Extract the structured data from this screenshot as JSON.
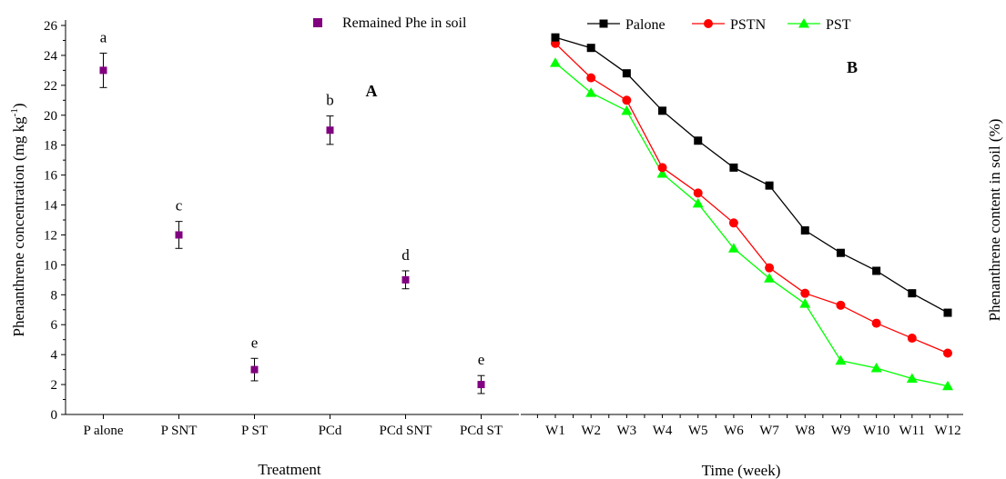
{
  "chart_data": [
    {
      "type": "scatter",
      "panel_label": "A",
      "xlabel": "Treatment",
      "ylabel": "Phenanthrene concentration (mg kg-1)",
      "ylabel_parts": {
        "main": "Phenanthrene concentration (mg kg",
        "superscript": "-1",
        "close": ")"
      },
      "ylim": [
        0,
        26
      ],
      "yticks": [
        0,
        2,
        4,
        6,
        8,
        10,
        12,
        14,
        16,
        18,
        20,
        22,
        24,
        26
      ],
      "categories": [
        "P alone",
        "P SNT",
        "P ST",
        "PCd",
        "PCd SNT",
        "PCd ST"
      ],
      "series": [
        {
          "name": "Remained Phe in soil",
          "color": "#800080",
          "marker": "square",
          "values": [
            23,
            12,
            3,
            19,
            9,
            2
          ],
          "errors": [
            1.15,
            0.9,
            0.75,
            0.95,
            0.6,
            0.6
          ],
          "letters": [
            "a",
            "c",
            "e",
            "b",
            "d",
            "e"
          ]
        }
      ],
      "legend_position": "top"
    },
    {
      "type": "line",
      "panel_label": "B",
      "xlabel": "Time (week)",
      "ylabel": "Phenanthrene content in soil (%)",
      "categories": [
        "W1",
        "W2",
        "W3",
        "W4",
        "W5",
        "W6",
        "W7",
        "W8",
        "W9",
        "W10",
        "W11",
        "W12"
      ],
      "ylim": [
        0,
        26
      ],
      "series": [
        {
          "name": "Palone",
          "color": "#000000",
          "marker": "square",
          "values": [
            25.2,
            24.5,
            22.8,
            20.3,
            18.3,
            16.5,
            15.3,
            12.3,
            10.8,
            9.6,
            8.1,
            6.8
          ]
        },
        {
          "name": "PSTN",
          "color": "#ff0000",
          "marker": "circle",
          "values": [
            24.8,
            22.5,
            21.0,
            16.5,
            14.8,
            12.8,
            9.8,
            8.1,
            7.3,
            6.1,
            5.1,
            4.1
          ]
        },
        {
          "name": "PST",
          "color": "#00ff00",
          "marker": "triangle",
          "values": [
            23.5,
            21.5,
            20.3,
            16.1,
            14.1,
            11.1,
            9.1,
            7.4,
            3.6,
            3.1,
            2.4,
            1.9
          ]
        }
      ],
      "legend_position": "top-left"
    }
  ]
}
